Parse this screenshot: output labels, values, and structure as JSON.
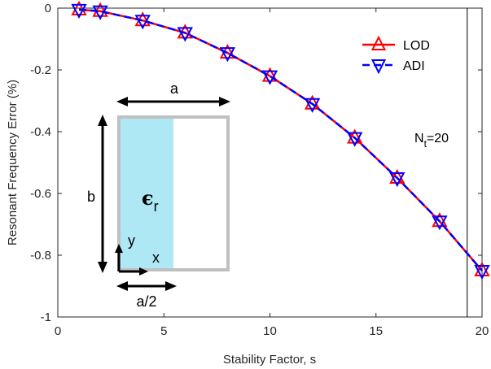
{
  "chart_data": {
    "type": "line",
    "title": "",
    "xlabel": "Stability Factor, s",
    "ylabel": "Resonant Frequency Error (%)",
    "xlim": [
      0,
      20
    ],
    "ylim": [
      -1,
      0
    ],
    "xticks": [
      "0",
      "5",
      "10",
      "15",
      "20"
    ],
    "yticks": [
      "0",
      "-0.2",
      "-0.4",
      "-0.6",
      "-0.8",
      "-1"
    ],
    "grid": false,
    "legend_position": "top-right",
    "series": [
      {
        "name": "LOD",
        "color": "#ff0000",
        "marker": "triangle-up",
        "line_style": "solid",
        "x": [
          1,
          2,
          4,
          6,
          8,
          10,
          12,
          14,
          16,
          18,
          20
        ],
        "y": [
          -0.005,
          -0.01,
          -0.04,
          -0.08,
          -0.145,
          -0.22,
          -0.31,
          -0.42,
          -0.55,
          -0.69,
          -0.85
        ]
      },
      {
        "name": "ADI",
        "color": "#0000ff",
        "marker": "triangle-down",
        "line_style": "dashed",
        "x": [
          1,
          2,
          4,
          6,
          8,
          10,
          12,
          14,
          16,
          18,
          20
        ],
        "y": [
          -0.005,
          -0.01,
          -0.04,
          -0.08,
          -0.145,
          -0.22,
          -0.31,
          -0.42,
          -0.55,
          -0.69,
          -0.85
        ]
      }
    ],
    "vline": {
      "x": 19.3,
      "label_main": "N",
      "label_sub": "t",
      "label_tail": "=20"
    },
    "inset": {
      "dimension_a": "a",
      "dimension_b": "b",
      "dimension_half": "a/2",
      "axis_x": "x",
      "axis_y": "y",
      "material_main": "ϵ",
      "material_sub": "r",
      "fill_color": "#aee8f5",
      "outline_color": "#c0c0c0"
    }
  }
}
